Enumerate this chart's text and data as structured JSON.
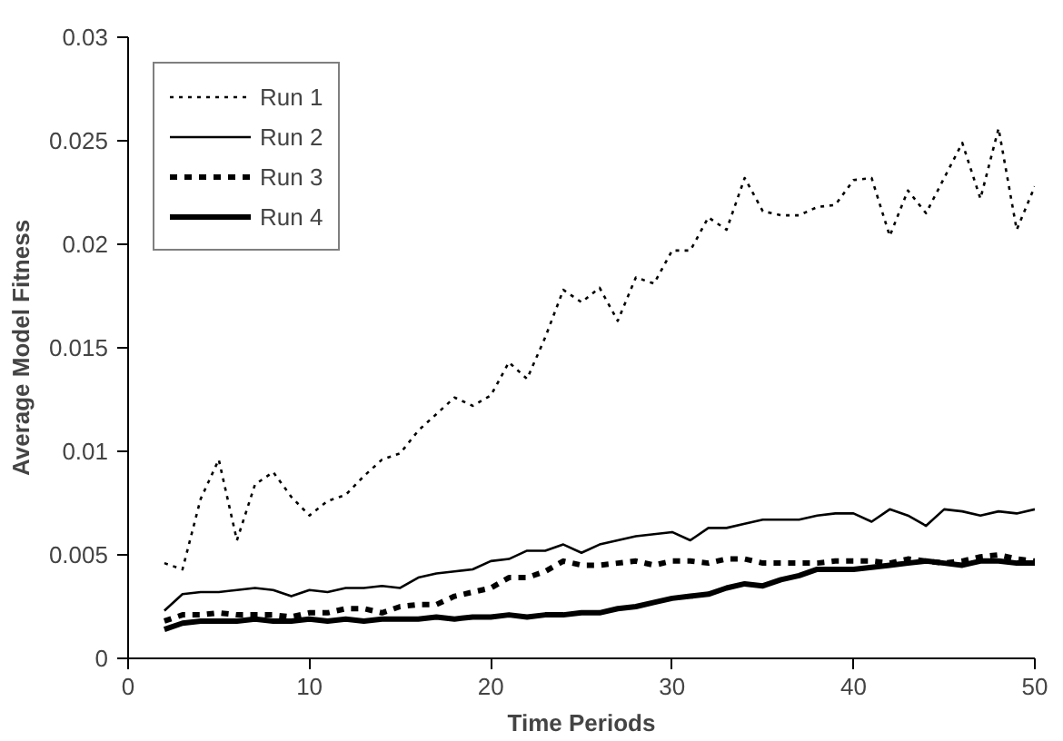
{
  "chart_data": {
    "type": "line",
    "xlabel": "Time Periods",
    "ylabel": "Average Model Fitness",
    "xlim": [
      0,
      50
    ],
    "ylim": [
      0,
      0.03
    ],
    "xticks": [
      0,
      10,
      20,
      30,
      40,
      50
    ],
    "yticks": [
      0,
      0.005,
      0.01,
      0.015,
      0.02,
      0.025,
      0.03
    ],
    "grid": false,
    "legend": "top left",
    "marker": "none",
    "x": [
      2,
      3,
      4,
      5,
      6,
      7,
      8,
      9,
      10,
      11,
      12,
      13,
      14,
      15,
      16,
      17,
      18,
      19,
      20,
      21,
      22,
      23,
      24,
      25,
      26,
      27,
      28,
      29,
      30,
      31,
      32,
      33,
      34,
      35,
      36,
      37,
      38,
      39,
      40,
      41,
      42,
      43,
      44,
      45,
      46,
      47,
      48,
      49,
      50
    ],
    "series": [
      {
        "name": "Run 1",
        "color": "#000000",
        "line_style": "dotted",
        "values": [
          0.0046,
          0.0043,
          0.0077,
          0.0096,
          0.0057,
          0.0084,
          0.009,
          0.0078,
          0.0069,
          0.0076,
          0.0079,
          0.0088,
          0.0096,
          0.0099,
          0.011,
          0.0118,
          0.0126,
          0.0122,
          0.0127,
          0.0143,
          0.0135,
          0.0155,
          0.0178,
          0.0172,
          0.0179,
          0.0163,
          0.0184,
          0.0181,
          0.0197,
          0.0197,
          0.0213,
          0.0207,
          0.0232,
          0.0216,
          0.0214,
          0.0214,
          0.0218,
          0.0219,
          0.0231,
          0.0232,
          0.0204,
          0.0226,
          0.0215,
          0.0232,
          0.0249,
          0.0222,
          0.0256,
          0.0207,
          0.0228
        ]
      },
      {
        "name": "Run 2",
        "color": "#000000",
        "line_style": "solid",
        "values": [
          0.0023,
          0.0031,
          0.0032,
          0.0032,
          0.0033,
          0.0034,
          0.0033,
          0.003,
          0.0033,
          0.0032,
          0.0034,
          0.0034,
          0.0035,
          0.0034,
          0.0039,
          0.0041,
          0.0042,
          0.0043,
          0.0047,
          0.0048,
          0.0052,
          0.0052,
          0.0055,
          0.0051,
          0.0055,
          0.0057,
          0.0059,
          0.006,
          0.0061,
          0.0057,
          0.0063,
          0.0063,
          0.0065,
          0.0067,
          0.0067,
          0.0067,
          0.0069,
          0.007,
          0.007,
          0.0066,
          0.0072,
          0.0069,
          0.0064,
          0.0072,
          0.0071,
          0.0069,
          0.0071,
          0.007,
          0.0072
        ]
      },
      {
        "name": "Run 3",
        "color": "#000000",
        "line_style": "dashed",
        "values": [
          0.0018,
          0.0021,
          0.0021,
          0.0022,
          0.0021,
          0.0021,
          0.0021,
          0.002,
          0.0022,
          0.0022,
          0.0024,
          0.0024,
          0.0022,
          0.0025,
          0.0026,
          0.0026,
          0.003,
          0.0032,
          0.0034,
          0.0039,
          0.0039,
          0.0042,
          0.0047,
          0.0045,
          0.0045,
          0.0046,
          0.0047,
          0.0045,
          0.0047,
          0.0047,
          0.0046,
          0.0048,
          0.0048,
          0.0046,
          0.0046,
          0.0046,
          0.0046,
          0.0047,
          0.0047,
          0.0047,
          0.0046,
          0.0048,
          0.0047,
          0.0046,
          0.0047,
          0.0049,
          0.005,
          0.0048,
          0.0047
        ]
      },
      {
        "name": "Run 4",
        "color": "#000000",
        "line_style": "solid",
        "values": [
          0.0014,
          0.0017,
          0.0018,
          0.0018,
          0.0018,
          0.0019,
          0.0018,
          0.0018,
          0.0019,
          0.0018,
          0.0019,
          0.0018,
          0.0019,
          0.0019,
          0.0019,
          0.002,
          0.0019,
          0.002,
          0.002,
          0.0021,
          0.002,
          0.0021,
          0.0021,
          0.0022,
          0.0022,
          0.0024,
          0.0025,
          0.0027,
          0.0029,
          0.003,
          0.0031,
          0.0034,
          0.0036,
          0.0035,
          0.0038,
          0.004,
          0.0043,
          0.0043,
          0.0043,
          0.0044,
          0.0045,
          0.0046,
          0.0047,
          0.0046,
          0.0045,
          0.0047,
          0.0047,
          0.0046,
          0.0046
        ]
      }
    ]
  }
}
